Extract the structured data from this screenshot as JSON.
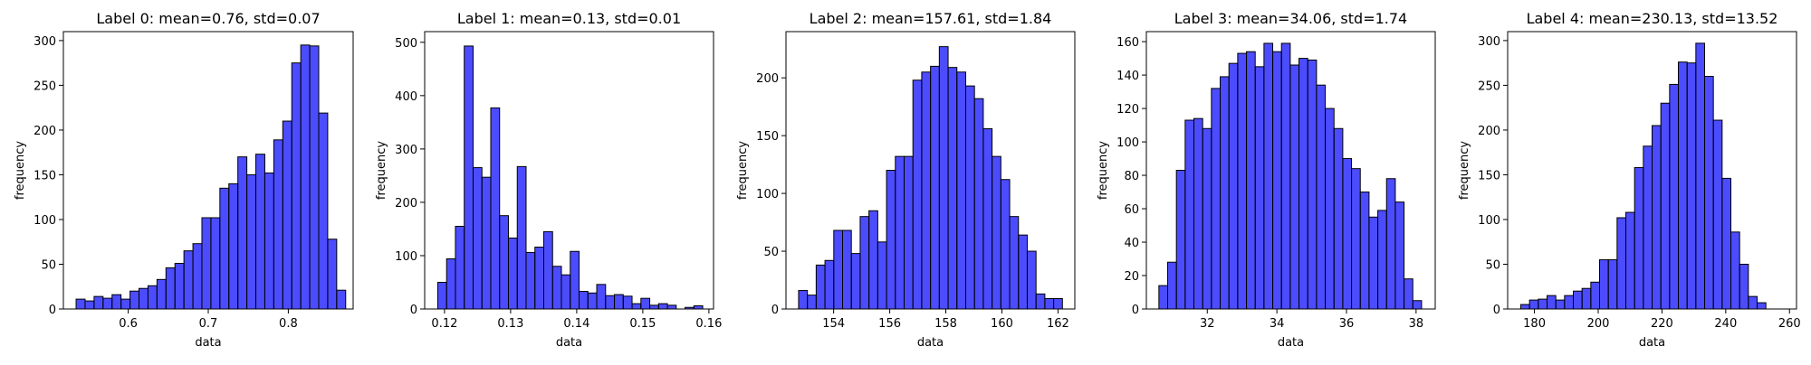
{
  "chart_data": [
    {
      "type": "bar",
      "title": "Label 0: mean=0.76, std=0.07",
      "xlabel": "data",
      "ylabel": "frequency",
      "xlim": [
        0.519,
        0.881
      ],
      "ylim": [
        0,
        310
      ],
      "xticks": [
        0.6,
        0.7,
        0.8
      ],
      "xtick_labels": [
        "0.6",
        "0.7",
        "0.8"
      ],
      "yticks": [
        0,
        50,
        100,
        150,
        200,
        250,
        300
      ],
      "ytick_labels": [
        "0",
        "50",
        "100",
        "150",
        "200",
        "250",
        "300"
      ],
      "bin_start": 0.5349,
      "bin_width": 0.011226,
      "values": [
        11,
        9,
        14,
        12,
        16,
        11,
        20,
        23,
        26,
        33,
        46,
        51,
        65,
        73,
        102,
        102,
        135,
        140,
        170,
        150,
        173,
        152,
        189,
        210,
        275,
        295,
        294,
        219,
        78,
        21
      ],
      "bar_color": "#0000ff",
      "grid": false
    },
    {
      "type": "bar",
      "title": "Label 1: mean=0.13, std=0.01",
      "xlabel": "data",
      "ylabel": "frequency",
      "xlim": [
        0.117,
        0.1607
      ],
      "ylim": [
        0,
        520
      ],
      "xticks": [
        0.12,
        0.13,
        0.14,
        0.15,
        0.16
      ],
      "xtick_labels": [
        "0.12",
        "0.13",
        "0.14",
        "0.15",
        "0.16"
      ],
      "yticks": [
        0,
        100,
        200,
        300,
        400,
        500
      ],
      "ytick_labels": [
        "0",
        "100",
        "200",
        "300",
        "400",
        "500"
      ],
      "bin_start": 0.11898,
      "bin_width": 0.0013362,
      "values": [
        50,
        94,
        155,
        493,
        265,
        247,
        377,
        175,
        133,
        267,
        106,
        116,
        145,
        80,
        64,
        108,
        33,
        30,
        46,
        25,
        27,
        24,
        10,
        20,
        7,
        10,
        7,
        0,
        3,
        6
      ],
      "bar_color": "#0000ff",
      "grid": false
    },
    {
      "type": "bar",
      "title": "Label 2: mean=157.61, std=1.84",
      "xlabel": "data",
      "ylabel": "frequency",
      "xlim": [
        152.3,
        162.6
      ],
      "ylim": [
        0,
        240
      ],
      "xticks": [
        154,
        156,
        158,
        160,
        162
      ],
      "xtick_labels": [
        "154",
        "156",
        "158",
        "160",
        "162"
      ],
      "yticks": [
        0,
        50,
        100,
        150,
        200
      ],
      "ytick_labels": [
        "0",
        "50",
        "100",
        "150",
        "200"
      ],
      "bin_start": 152.75,
      "bin_width": 0.3136,
      "values": [
        16,
        12,
        38,
        42,
        68,
        68,
        48,
        80,
        85,
        58,
        120,
        132,
        132,
        198,
        205,
        210,
        227,
        209,
        205,
        193,
        182,
        156,
        132,
        112,
        80,
        64,
        50,
        13,
        9,
        9
      ],
      "bar_color": "#0000ff",
      "grid": false
    },
    {
      "type": "bar",
      "title": "Label 3: mean=34.06, std=1.74",
      "xlabel": "data",
      "ylabel": "frequency",
      "xlim": [
        30.25,
        38.55
      ],
      "ylim": [
        0,
        166
      ],
      "xticks": [
        32,
        34,
        36,
        38
      ],
      "xtick_labels": [
        "32",
        "34",
        "36",
        "38"
      ],
      "yticks": [
        0,
        20,
        40,
        60,
        80,
        100,
        120,
        140,
        160
      ],
      "ytick_labels": [
        "0",
        "20",
        "40",
        "60",
        "80",
        "100",
        "120",
        "140",
        "160"
      ],
      "bin_start": 30.61,
      "bin_width": 0.2516,
      "values": [
        14,
        28,
        83,
        113,
        114,
        108,
        132,
        139,
        147,
        153,
        154,
        145,
        159,
        154,
        159,
        146,
        150,
        149,
        134,
        120,
        108,
        90,
        84,
        70,
        55,
        59,
        78,
        64,
        18,
        5
      ],
      "bar_color": "#0000ff",
      "grid": false
    },
    {
      "type": "bar",
      "title": "Label 4: mean=230.13, std=13.52",
      "xlabel": "data",
      "ylabel": "frequency",
      "xlim": [
        171.6,
        262.2
      ],
      "ylim": [
        0,
        310
      ],
      "xticks": [
        180,
        200,
        220,
        240,
        260
      ],
      "xtick_labels": [
        "180",
        "200",
        "220",
        "240",
        "260"
      ],
      "yticks": [
        0,
        50,
        100,
        150,
        200,
        250,
        300
      ],
      "ytick_labels": [
        "0",
        "50",
        "100",
        "150",
        "200",
        "250",
        "300"
      ],
      "bin_start": 175.72,
      "bin_width": 2.7455,
      "values": [
        5,
        10,
        11,
        15,
        10,
        15,
        20,
        23,
        30,
        55,
        55,
        102,
        108,
        158,
        182,
        205,
        230,
        251,
        276,
        275,
        297,
        260,
        211,
        146,
        86,
        50,
        14,
        7,
        0,
        0
      ],
      "bar_color": "#0000ff",
      "grid": false
    }
  ]
}
